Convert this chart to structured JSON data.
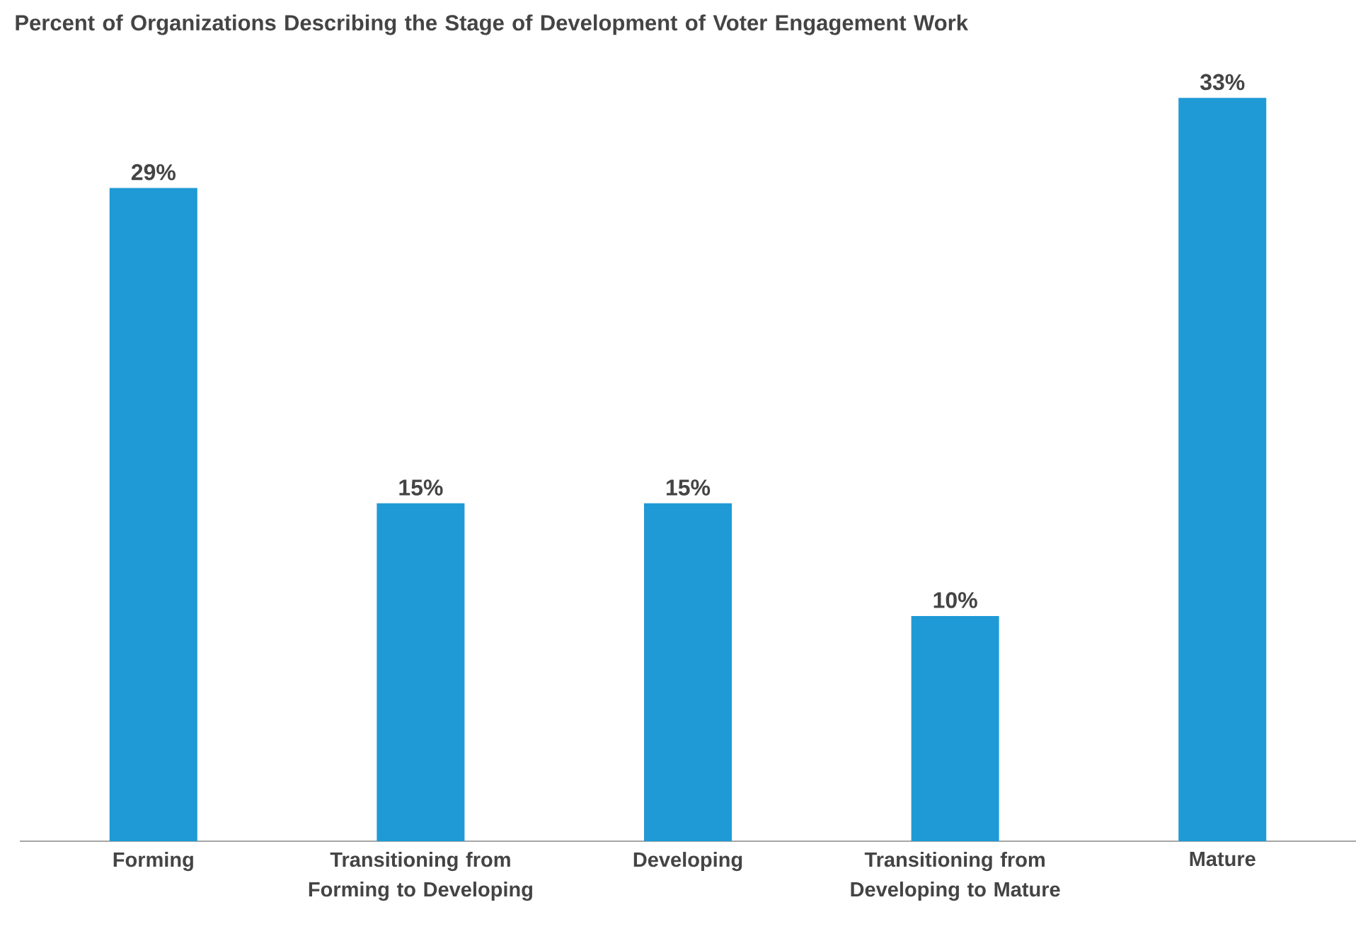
{
  "chart_data": {
    "type": "bar",
    "title": "Percent of Organizations Describing the Stage of Development of Voter Engagement Work",
    "categories": [
      "Forming",
      "Transitioning from Forming to Developing",
      "Developing",
      "Transitioning from Developing to Mature",
      "Mature"
    ],
    "values": [
      29,
      15,
      15,
      10,
      33
    ],
    "value_labels": [
      "29%",
      "15%",
      "15%",
      "10%",
      "33%"
    ],
    "color": "#1f9ad6"
  }
}
